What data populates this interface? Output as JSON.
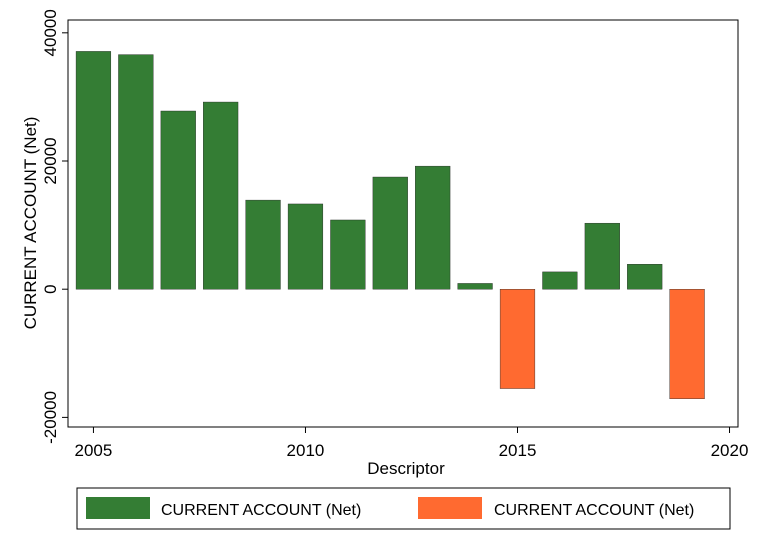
{
  "chart_data": {
    "type": "bar",
    "xlabel": "Descriptor",
    "ylabel": "CURRENT ACCOUNT (Net)",
    "xlim": [
      2004.4,
      2020.2
    ],
    "ylim": [
      -21500,
      42000
    ],
    "x_ticks": [
      "2005",
      "2010",
      "2015",
      "2020"
    ],
    "y_ticks": [
      "-20000",
      "0",
      "20000",
      "40000"
    ],
    "grid": false,
    "legend_position": "bottom",
    "colors": {
      "positive": "#347d34",
      "negative": "#ff6a30"
    },
    "series": [
      {
        "name": "CURRENT ACCOUNT (Net)",
        "color": "#347d34",
        "points": [
          {
            "x": 2005,
            "y": 37100
          },
          {
            "x": 2006,
            "y": 36600
          },
          {
            "x": 2007,
            "y": 27800
          },
          {
            "x": 2008,
            "y": 29200
          },
          {
            "x": 2009,
            "y": 13900
          },
          {
            "x": 2010,
            "y": 13300
          },
          {
            "x": 2011,
            "y": 10800
          },
          {
            "x": 2012,
            "y": 17500
          },
          {
            "x": 2013,
            "y": 19200
          },
          {
            "x": 2014,
            "y": 900
          },
          {
            "x": 2016,
            "y": 2700
          },
          {
            "x": 2017,
            "y": 10300
          },
          {
            "x": 2018,
            "y": 3900
          }
        ]
      },
      {
        "name": "CURRENT ACCOUNT (Net)",
        "color": "#ff6a30",
        "points": [
          {
            "x": 2015,
            "y": -15500
          },
          {
            "x": 2019,
            "y": -17100
          }
        ]
      }
    ]
  }
}
